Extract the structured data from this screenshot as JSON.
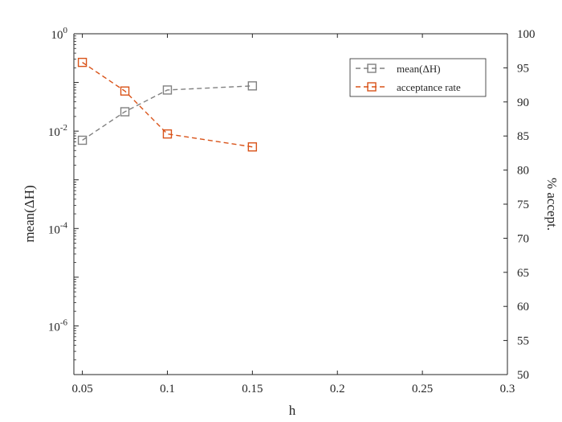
{
  "chart_data": {
    "type": "line",
    "xlabel": "h",
    "ylabel_left": "mean(ΔH)",
    "ylabel_right": "% accept.",
    "xlim": [
      0.045,
      0.3
    ],
    "x_ticks": [
      "0.05",
      "0.1",
      "0.15",
      "0.2",
      "0.25",
      "0.3"
    ],
    "x_tick_values": [
      0.05,
      0.1,
      0.15,
      0.2,
      0.25,
      0.3
    ],
    "left_axis": {
      "scale": "log",
      "ylim": [
        1e-07,
        1
      ],
      "ticks": [
        {
          "value": 1,
          "base": "10",
          "exp": "0"
        },
        {
          "value": 0.01,
          "base": "10",
          "exp": "-2"
        },
        {
          "value": 0.0001,
          "base": "10",
          "exp": "-4"
        },
        {
          "value": 1e-06,
          "base": "10",
          "exp": "-6"
        }
      ]
    },
    "right_axis": {
      "scale": "linear",
      "ylim": [
        50,
        100
      ],
      "ticks": [
        "50",
        "55",
        "60",
        "65",
        "70",
        "75",
        "80",
        "85",
        "90",
        "95",
        "100"
      ]
    },
    "series": [
      {
        "name": "mean(ΔH)",
        "axis": "left",
        "color": "#808080",
        "marker": "square",
        "linestyle": "dashed",
        "x": [
          0.05,
          0.075,
          0.1,
          0.15
        ],
        "y": [
          0.0065,
          0.025,
          0.07,
          0.085
        ]
      },
      {
        "name": "acceptance rate",
        "axis": "right",
        "color": "#D95319",
        "marker": "square",
        "linestyle": "dashed",
        "x": [
          0.05,
          0.075,
          0.1,
          0.15
        ],
        "y": [
          95.8,
          91.6,
          85.3,
          83.4
        ]
      }
    ],
    "legend_position": "top-right",
    "grid": false
  }
}
